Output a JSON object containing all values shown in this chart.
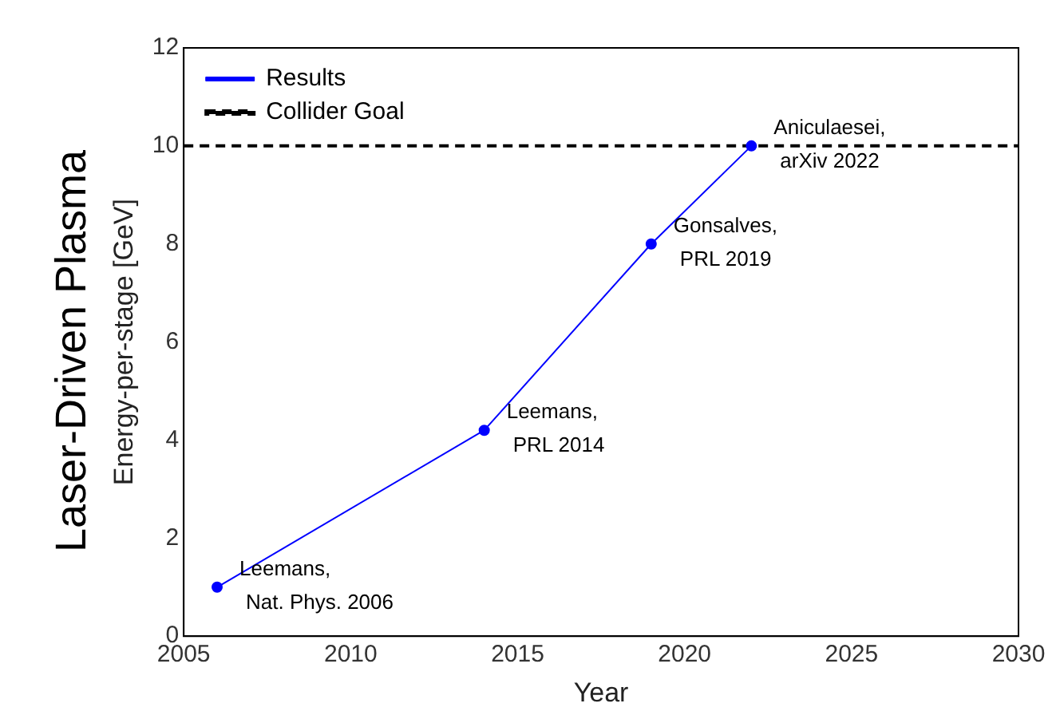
{
  "chart_data": {
    "type": "line",
    "title": "Laser-Driven Plasma",
    "xlabel": "Year",
    "ylabel": "Energy-per-stage [GeV]",
    "x": [
      2006,
      2014,
      2019,
      2022
    ],
    "series": [
      {
        "name": "Results",
        "color": "#0000ff",
        "values": [
          1,
          4.2,
          8,
          10
        ]
      }
    ],
    "ref_lines": [
      {
        "axis": "y",
        "value": 10,
        "label": "Collider Goal",
        "color": "#000000",
        "line_style": "dashed"
      }
    ],
    "annotations": [
      {
        "text": "Leemans,\nNat. Phys. 2006",
        "x": 2006,
        "y": 1
      },
      {
        "text": "Leemans,\nPRL 2014",
        "x": 2014,
        "y": 4.2
      },
      {
        "text": "Gonsalves,\nPRL 2019",
        "x": 2019,
        "y": 8
      },
      {
        "text": "Aniculaesei,\narXiv 2022",
        "x": 2022,
        "y": 10
      }
    ],
    "xlim": [
      2005,
      2030
    ],
    "xticks": [
      2005,
      2010,
      2015,
      2020,
      2025,
      2030
    ],
    "ylim": [
      0,
      12
    ],
    "yticks": [
      0,
      2,
      4,
      6,
      8,
      10,
      12
    ],
    "grid": false,
    "legend": "top left",
    "marker": "circle",
    "line_style": "solid"
  }
}
